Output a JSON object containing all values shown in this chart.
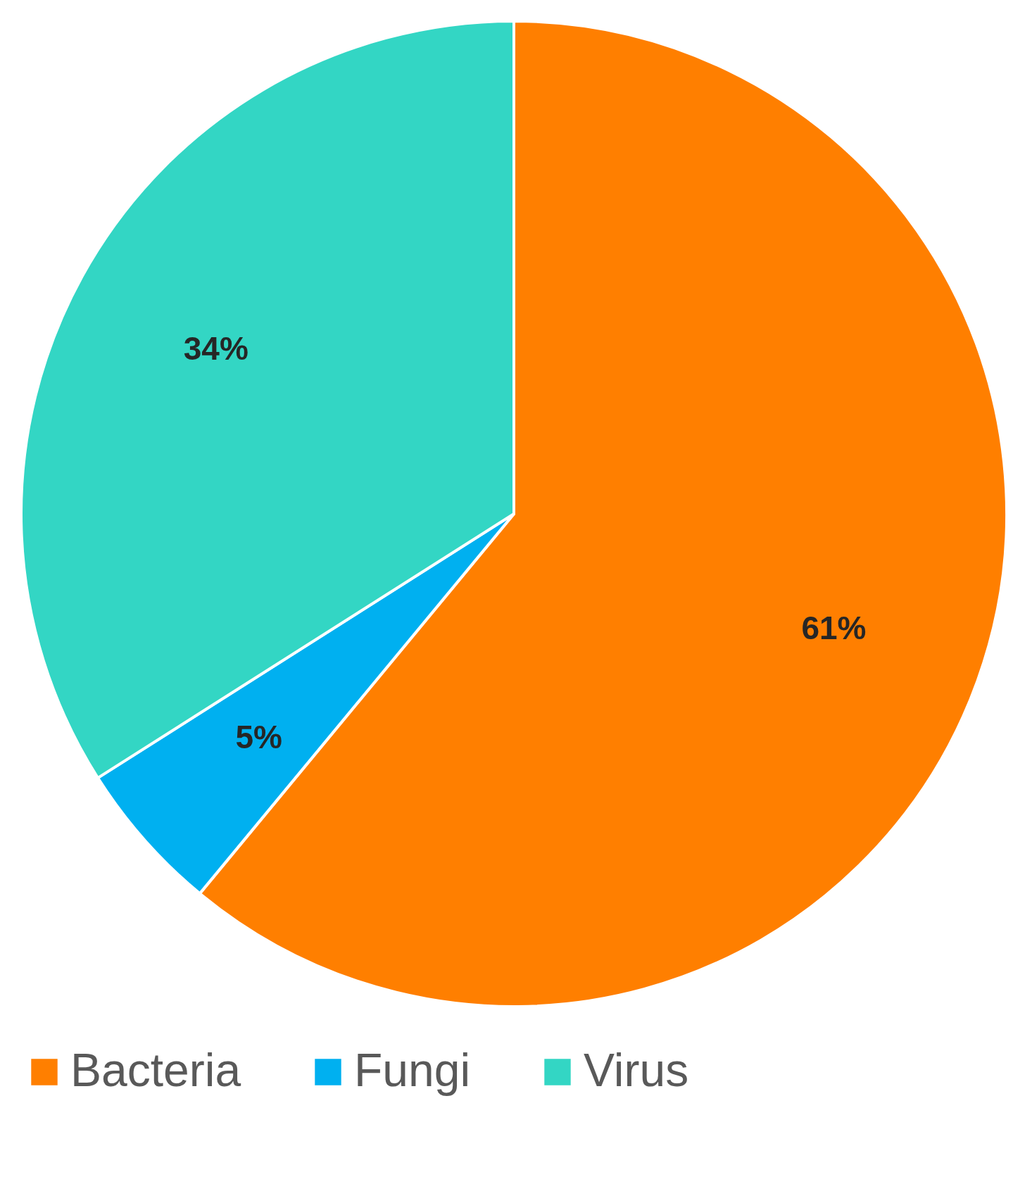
{
  "chart_data": {
    "type": "pie",
    "categories": [
      "Bacteria",
      "Fungi",
      "Virus"
    ],
    "values": [
      61,
      5,
      34
    ],
    "colors": [
      "#ff7f00",
      "#00b0f0",
      "#33d6c4"
    ],
    "value_labels": [
      "61%",
      "5%",
      "34%"
    ],
    "legend": "bottom"
  }
}
